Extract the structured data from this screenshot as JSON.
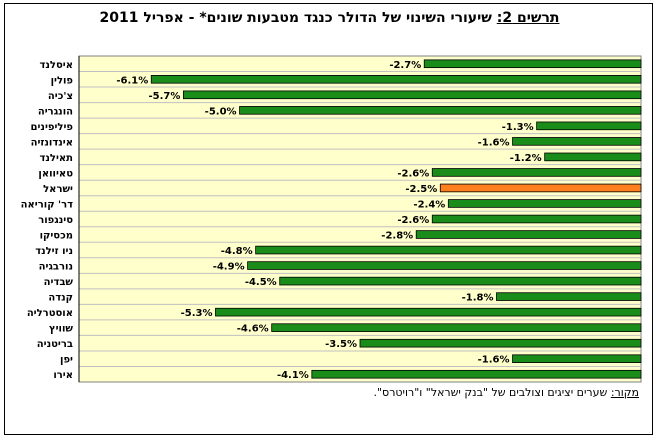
{
  "title": {
    "lead": "תרשים 2:",
    "text": " שיעורי השינוי של הדולר כנגד מטבעות שונים* - אפריל 2011"
  },
  "source": {
    "label": "מקור:",
    "text": " שערים יציגים וצולבים של \"בנק ישראל\" ו\"רויטרס\"."
  },
  "colors": {
    "bar": "#1a8c1a",
    "highlight": "#ff7f1f",
    "plot_bg": "#ffffcc",
    "grid": "#c0c0c0"
  },
  "chart_data": {
    "type": "bar",
    "orientation": "horizontal",
    "categories": [
      "איסלנד",
      "פולין",
      "צ'כיה",
      "הונגריה",
      "פיליפינים",
      "אינדונזיה",
      "תאילנד",
      "טאיוואן",
      "ישראל",
      "דר' קוריאה",
      "סינגפור",
      "מכסיקו",
      "ניו זילנד",
      "נורבגיה",
      "שבדיה",
      "קנדה",
      "אוסטרליה",
      "שוויץ",
      "בריטניה",
      "יפן",
      "אירו"
    ],
    "values": [
      -2.7,
      -6.1,
      -5.7,
      -5.0,
      -1.3,
      -1.6,
      -1.2,
      -2.6,
      -2.5,
      -2.4,
      -2.6,
      -2.8,
      -4.8,
      -4.9,
      -4.5,
      -1.8,
      -5.3,
      -4.6,
      -3.5,
      -1.6,
      -4.1
    ],
    "data_labels": [
      "-2.7%",
      "-6.1%",
      "-5.7%",
      "-5.0%",
      "-1.3%",
      "-1.6%",
      "-1.2%",
      "-2.6%",
      "-2.5%",
      "-2.4%",
      "-2.6%",
      "-2.8%",
      "-4.8%",
      "-4.9%",
      "-4.5%",
      "-1.8%",
      "-5.3%",
      "-4.6%",
      "-3.5%",
      "-1.6%",
      "-4.1%"
    ],
    "highlight_category": "ישראל",
    "xlim": [
      -7,
      0
    ],
    "grid": "horizontal",
    "legend": "none"
  }
}
